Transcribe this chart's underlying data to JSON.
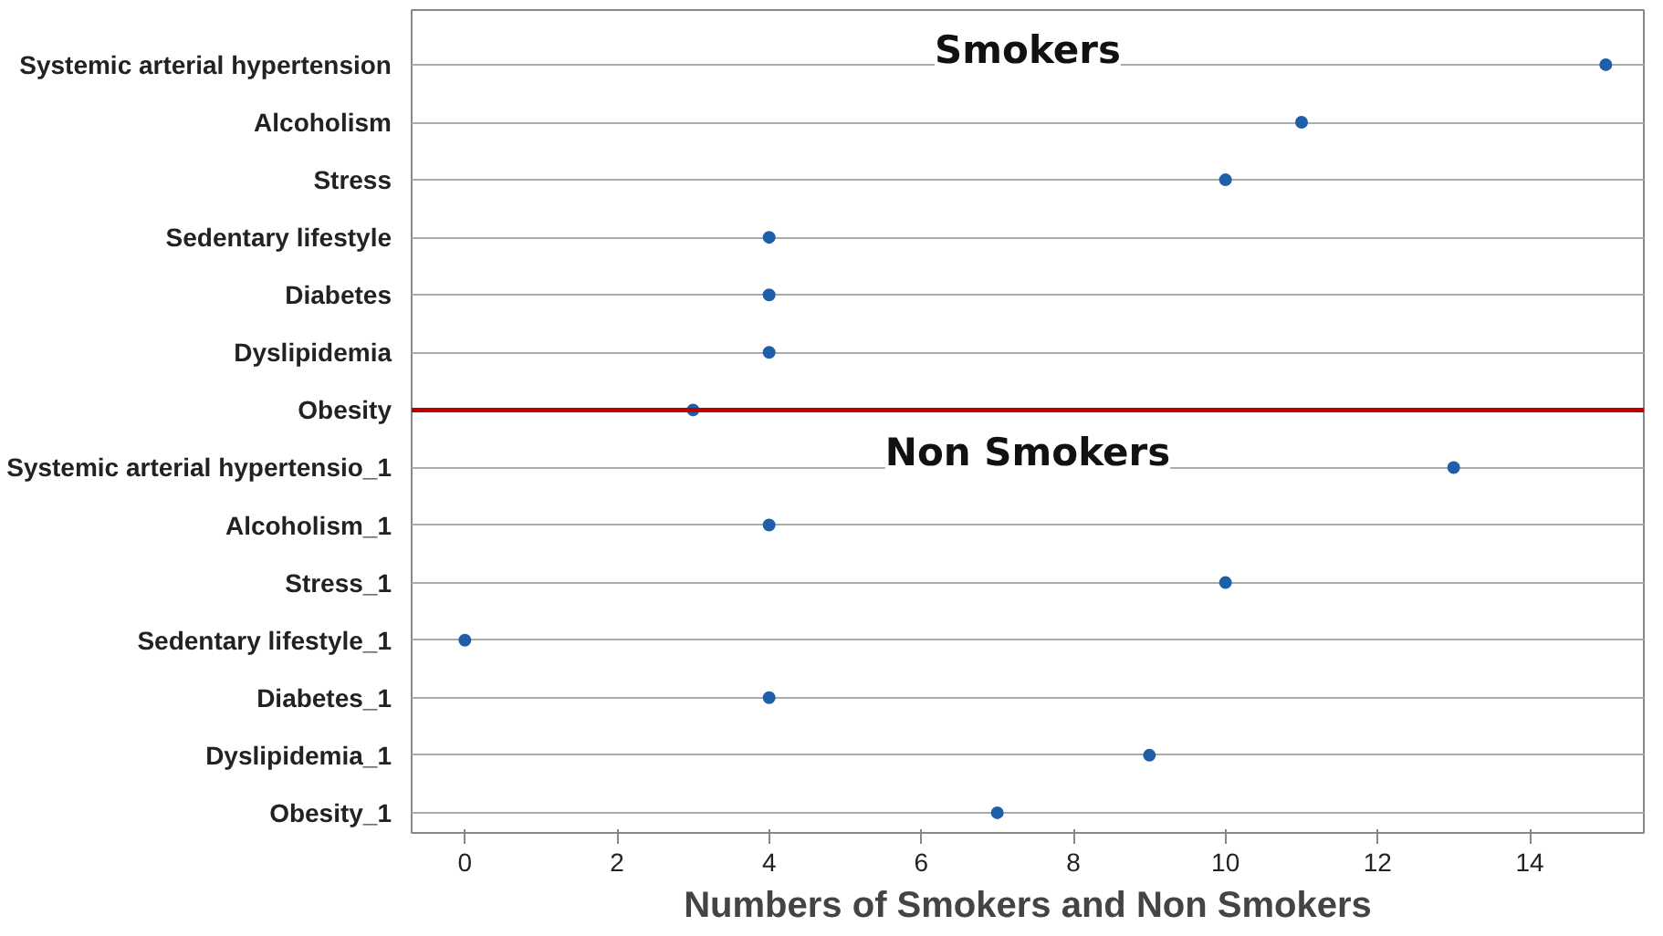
{
  "chart_data": {
    "type": "scatter",
    "xlabel": "Numbers of Smokers and Non Smokers",
    "categories": [
      "Systemic arterial hypertension",
      "Alcoholism",
      "Stress",
      "Sedentary lifestyle",
      "Diabetes",
      "Dyslipidemia",
      "Obesity",
      "Systemic arterial hypertensio_1",
      "Alcoholism_1",
      "Stress_1",
      "Sedentary lifestyle_1",
      "Diabetes_1",
      "Dyslipidemia_1",
      "Obesity_1"
    ],
    "series": [
      {
        "color": "#1f5fa8",
        "values": [
          15,
          11,
          10,
          4,
          4,
          4,
          3,
          13,
          4,
          10,
          0,
          4,
          9,
          7
        ]
      }
    ],
    "orientation": "horizontal",
    "xlim": [
      -0.7,
      15.5
    ],
    "xticks": [
      0,
      2,
      4,
      6,
      8,
      10,
      12,
      14
    ],
    "grid": "y",
    "marker": "circle",
    "ref_lines": [
      {
        "axis": "y",
        "value": "Obesity",
        "color": "#c00000"
      }
    ],
    "annotations": [
      "Smokers",
      "Non Smokers"
    ]
  }
}
